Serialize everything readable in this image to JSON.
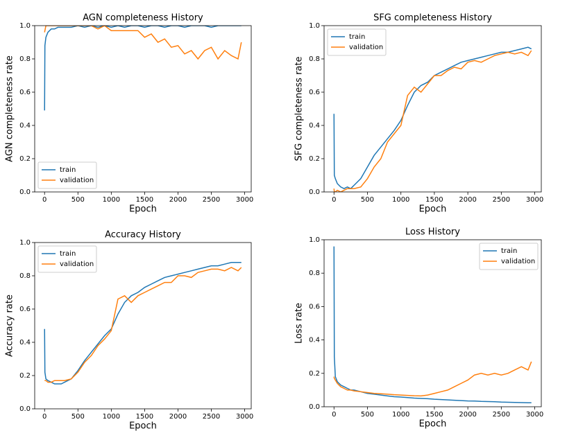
{
  "chart_data": [
    {
      "type": "line",
      "title": "AGN completeness History",
      "xlabel": "Epoch",
      "ylabel": "AGN completeness rate",
      "legend": "lower left",
      "x": [
        0,
        5,
        20,
        50,
        100,
        150,
        200,
        250,
        300,
        400,
        500,
        600,
        700,
        800,
        900,
        1000,
        1100,
        1200,
        1300,
        1400,
        1500,
        1600,
        1700,
        1800,
        1900,
        2000,
        2100,
        2200,
        2300,
        2400,
        2500,
        2600,
        2700,
        2800,
        2900,
        2950
      ],
      "series": [
        {
          "name": "train",
          "color": "#1f77b4",
          "values": [
            0.49,
            0.88,
            0.93,
            0.96,
            0.98,
            0.98,
            0.99,
            0.99,
            0.99,
            0.99,
            1.0,
            0.99,
            1.0,
            0.99,
            1.0,
            0.99,
            1.0,
            0.99,
            1.0,
            1.0,
            0.99,
            1.0,
            1.0,
            0.99,
            1.0,
            1.0,
            0.99,
            1.0,
            1.0,
            1.0,
            0.99,
            1.0,
            1.0,
            1.0,
            1.0,
            1.0
          ]
        },
        {
          "name": "validation",
          "color": "#ff7f0e",
          "values": [
            0.96,
            0.97,
            1.0,
            1.0,
            1.0,
            1.0,
            1.0,
            1.0,
            1.0,
            1.0,
            1.0,
            1.0,
            1.0,
            0.98,
            1.0,
            0.97,
            0.97,
            0.97,
            0.97,
            0.97,
            0.93,
            0.95,
            0.9,
            0.92,
            0.87,
            0.88,
            0.83,
            0.85,
            0.8,
            0.85,
            0.87,
            0.8,
            0.85,
            0.82,
            0.8,
            0.9
          ]
        }
      ],
      "xlim": [
        -148,
        3098
      ],
      "ylim": [
        0,
        1
      ],
      "xticks": [
        0,
        500,
        1000,
        1500,
        2000,
        2500,
        3000
      ],
      "yticks": [
        {
          "value": 0,
          "label": "0.0"
        },
        0.2,
        0.4,
        0.6,
        0.8,
        {
          "value": 1,
          "label": "1.0"
        }
      ]
    },
    {
      "type": "line",
      "title": "SFG completeness History",
      "xlabel": "Epoch",
      "ylabel": "SFG completeness rate",
      "legend": "upper left",
      "x": [
        0,
        5,
        20,
        50,
        100,
        150,
        200,
        250,
        300,
        400,
        500,
        600,
        700,
        800,
        900,
        1000,
        1100,
        1200,
        1300,
        1400,
        1500,
        1600,
        1700,
        1800,
        1900,
        2000,
        2100,
        2200,
        2300,
        2400,
        2500,
        2600,
        2700,
        2800,
        2900,
        2950
      ],
      "series": [
        {
          "name": "train",
          "color": "#1f77b4",
          "values": [
            0.47,
            0.1,
            0.08,
            0.05,
            0.03,
            0.02,
            0.03,
            0.02,
            0.04,
            0.08,
            0.15,
            0.22,
            0.27,
            0.32,
            0.37,
            0.43,
            0.52,
            0.6,
            0.64,
            0.66,
            0.7,
            0.72,
            0.74,
            0.76,
            0.78,
            0.79,
            0.8,
            0.81,
            0.82,
            0.83,
            0.84,
            0.84,
            0.85,
            0.86,
            0.87,
            0.86
          ]
        },
        {
          "name": "validation",
          "color": "#ff7f0e",
          "values": [
            0.02,
            0.0,
            0.0,
            0.01,
            0.0,
            0.01,
            0.02,
            0.02,
            0.02,
            0.03,
            0.08,
            0.15,
            0.2,
            0.3,
            0.35,
            0.4,
            0.58,
            0.63,
            0.6,
            0.65,
            0.7,
            0.7,
            0.73,
            0.75,
            0.74,
            0.78,
            0.79,
            0.78,
            0.8,
            0.82,
            0.83,
            0.84,
            0.83,
            0.84,
            0.82,
            0.85
          ]
        }
      ],
      "xlim": [
        -148,
        3098
      ],
      "ylim": [
        0,
        1
      ],
      "xticks": [
        0,
        500,
        1000,
        1500,
        2000,
        2500,
        3000
      ],
      "yticks": [
        {
          "value": 0,
          "label": "0.0"
        },
        0.2,
        0.4,
        0.6,
        0.8,
        {
          "value": 1,
          "label": "1.0"
        }
      ]
    },
    {
      "type": "line",
      "title": "Accuracy History",
      "xlabel": "Epoch",
      "ylabel": "Accuracy rate",
      "legend": "upper left",
      "x": [
        0,
        5,
        20,
        50,
        100,
        150,
        200,
        250,
        300,
        400,
        500,
        600,
        700,
        800,
        900,
        1000,
        1100,
        1200,
        1300,
        1400,
        1500,
        1600,
        1700,
        1800,
        1900,
        2000,
        2100,
        2200,
        2300,
        2400,
        2500,
        2600,
        2700,
        2800,
        2900,
        2950
      ],
      "series": [
        {
          "name": "train",
          "color": "#1f77b4",
          "values": [
            0.48,
            0.22,
            0.18,
            0.17,
            0.16,
            0.15,
            0.15,
            0.15,
            0.16,
            0.18,
            0.23,
            0.29,
            0.34,
            0.39,
            0.44,
            0.48,
            0.57,
            0.64,
            0.68,
            0.7,
            0.73,
            0.75,
            0.77,
            0.79,
            0.8,
            0.81,
            0.82,
            0.83,
            0.84,
            0.85,
            0.86,
            0.86,
            0.87,
            0.88,
            0.88,
            0.88
          ]
        },
        {
          "name": "validation",
          "color": "#ff7f0e",
          "values": [
            0.17,
            0.17,
            0.17,
            0.16,
            0.16,
            0.17,
            0.17,
            0.17,
            0.17,
            0.18,
            0.22,
            0.28,
            0.32,
            0.38,
            0.42,
            0.47,
            0.66,
            0.68,
            0.64,
            0.68,
            0.7,
            0.72,
            0.74,
            0.76,
            0.76,
            0.8,
            0.8,
            0.79,
            0.82,
            0.83,
            0.84,
            0.84,
            0.83,
            0.85,
            0.83,
            0.85
          ]
        }
      ],
      "xlim": [
        -148,
        3098
      ],
      "ylim": [
        0,
        1
      ],
      "xticks": [
        0,
        500,
        1000,
        1500,
        2000,
        2500,
        3000
      ],
      "yticks": [
        {
          "value": 0,
          "label": "0.0"
        },
        0.2,
        0.4,
        0.6,
        0.8,
        {
          "value": 1,
          "label": "1.0"
        }
      ]
    },
    {
      "type": "line",
      "title": "Loss History",
      "xlabel": "Epoch",
      "ylabel": "Loss rate",
      "legend": "upper right",
      "x": [
        0,
        5,
        20,
        50,
        100,
        150,
        200,
        250,
        300,
        400,
        500,
        600,
        700,
        800,
        900,
        1000,
        1100,
        1200,
        1300,
        1400,
        1500,
        1600,
        1700,
        1800,
        1900,
        2000,
        2100,
        2200,
        2300,
        2400,
        2500,
        2600,
        2700,
        2800,
        2900,
        2950
      ],
      "series": [
        {
          "name": "train",
          "color": "#1f77b4",
          "values": [
            0.96,
            0.3,
            0.18,
            0.15,
            0.13,
            0.12,
            0.11,
            0.1,
            0.1,
            0.09,
            0.08,
            0.075,
            0.07,
            0.065,
            0.06,
            0.058,
            0.055,
            0.052,
            0.05,
            0.048,
            0.045,
            0.043,
            0.041,
            0.039,
            0.037,
            0.035,
            0.034,
            0.032,
            0.031,
            0.03,
            0.028,
            0.027,
            0.026,
            0.025,
            0.024,
            0.024
          ]
        },
        {
          "name": "validation",
          "color": "#ff7f0e",
          "values": [
            0.18,
            0.17,
            0.16,
            0.14,
            0.12,
            0.11,
            0.1,
            0.1,
            0.095,
            0.09,
            0.085,
            0.08,
            0.078,
            0.075,
            0.072,
            0.07,
            0.068,
            0.066,
            0.065,
            0.07,
            0.08,
            0.09,
            0.1,
            0.12,
            0.14,
            0.16,
            0.19,
            0.2,
            0.19,
            0.2,
            0.19,
            0.2,
            0.22,
            0.24,
            0.22,
            0.27
          ]
        }
      ],
      "xlim": [
        -148,
        3098
      ],
      "ylim": [
        0,
        1
      ],
      "xticks": [
        0,
        500,
        1000,
        1500,
        2000,
        2500,
        3000
      ],
      "yticks": [
        {
          "value": 0,
          "label": "0.0"
        },
        0.2,
        0.4,
        0.6,
        0.8,
        {
          "value": 1,
          "label": "1.0"
        }
      ]
    }
  ]
}
